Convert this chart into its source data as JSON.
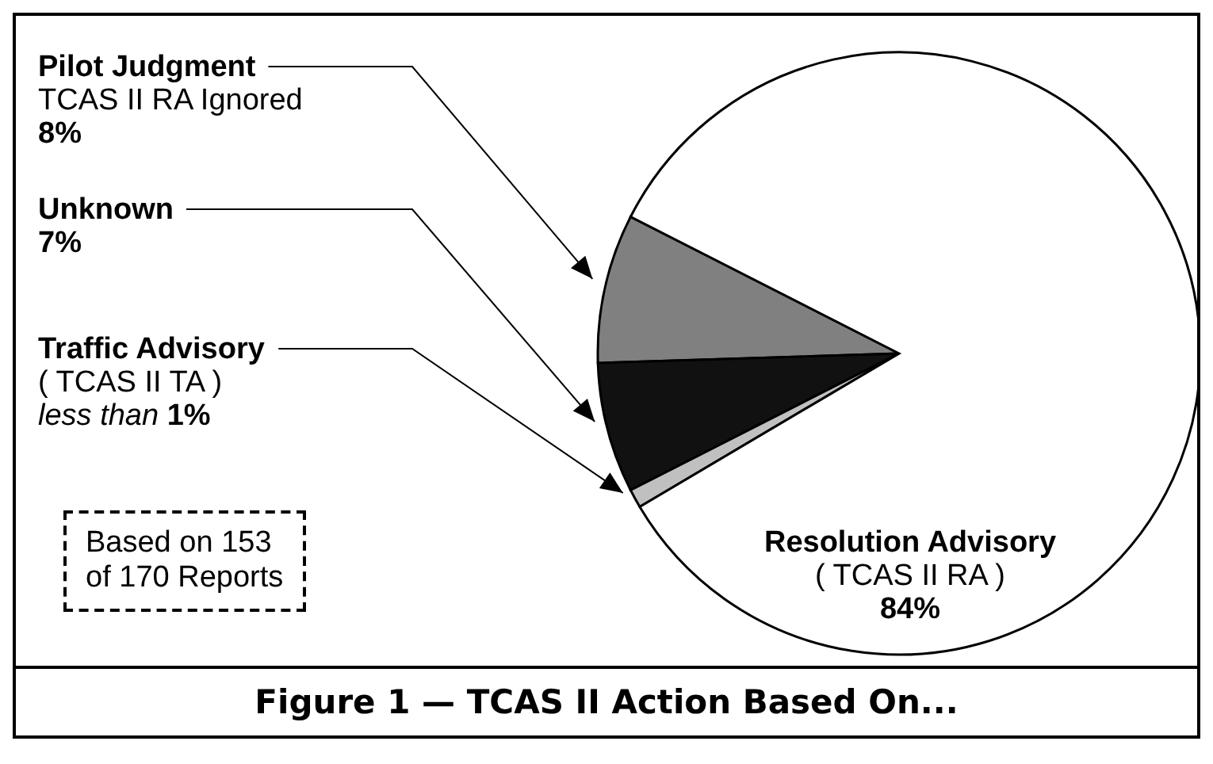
{
  "chart_data": {
    "type": "pie",
    "title": "Figure 1 — TCAS II Action Based On...",
    "categories": [
      "Pilot Judgment\nTCAS II RA Ignored",
      "Unknown",
      "Traffic Advisory\n( TCAS II TA )",
      "Resolution Advisory\n( TCAS II RA )"
    ],
    "values": [
      8,
      7,
      1,
      84
    ],
    "value_labels": [
      "8%",
      "7%",
      "less than 1%",
      "84%"
    ],
    "colors": [
      "#808080",
      "#111111",
      "#c0c0c0",
      "#ffffff"
    ],
    "annotations": [
      "Based on 153\nof 170 Reports"
    ],
    "legend": false
  }
}
